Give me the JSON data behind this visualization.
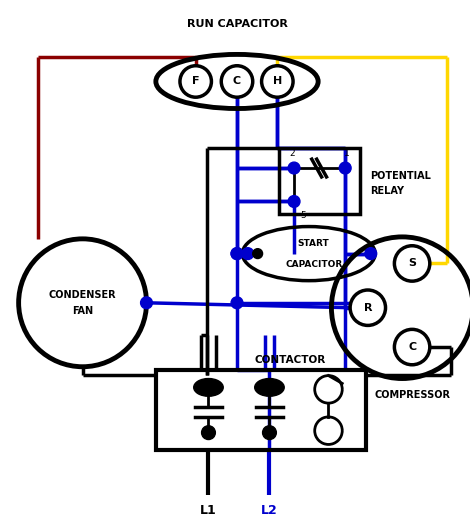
{
  "bg_color": "#ffffff",
  "wire_black": "#000000",
  "wire_blue": "#0000cd",
  "wire_red": "#8B0000",
  "wire_yellow": "#FFD700",
  "labels": {
    "run_cap": "RUN CAPACITOR",
    "start_cap_line1": "START",
    "start_cap_line2": "CAPACITOR",
    "condenser_line1": "CONDENSER",
    "condenser_line2": "FAN",
    "compressor": "COMPRESSOR",
    "contactor": "CONTACTOR",
    "potential_relay_line1": "POTENTIAL",
    "potential_relay_line2": "RELAY",
    "L1": "L1",
    "L2": "L2"
  }
}
